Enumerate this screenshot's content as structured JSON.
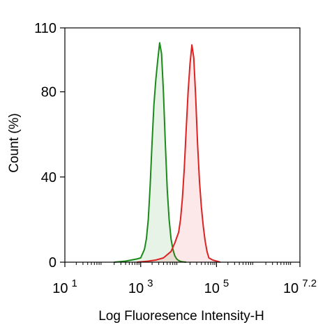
{
  "chart_data": {
    "type": "area",
    "title": "",
    "xlabel": "Log Fluoresence Intensity-H",
    "ylabel": "Count  (%)",
    "x_scale": "log10",
    "xlim": [
      1,
      7.2
    ],
    "ylim": [
      0,
      110
    ],
    "grid": false,
    "legend": "none",
    "x_ticks": [
      {
        "base": "10",
        "exp": "1",
        "value": 1
      },
      {
        "base": "10",
        "exp": "3",
        "value": 3
      },
      {
        "base": "10",
        "exp": "5",
        "value": 5
      },
      {
        "base": "10",
        "exp": "7.2",
        "value": 7.2
      }
    ],
    "y_ticks": [
      {
        "label": "0",
        "value": 0
      },
      {
        "label": "40",
        "value": 40
      },
      {
        "label": "80",
        "value": 80
      },
      {
        "label": "110",
        "value": 110
      }
    ],
    "series": [
      {
        "color": "#1a8a1a",
        "fill": "rgba(26,138,26,0.10)",
        "x": [
          2.3,
          2.6,
          2.9,
          3.0,
          3.05,
          3.1,
          3.15,
          3.2,
          3.25,
          3.3,
          3.35,
          3.4,
          3.45,
          3.5,
          3.55,
          3.6,
          3.65,
          3.7,
          3.75,
          3.8,
          3.85,
          3.9,
          3.95,
          4.0,
          4.05,
          4.1,
          4.2
        ],
        "y": [
          0,
          0.5,
          1.5,
          2,
          4,
          6,
          11,
          20,
          36,
          56,
          74,
          86,
          95,
          103,
          98,
          80,
          56,
          34,
          20,
          11,
          6,
          3,
          1.5,
          0.8,
          0.4,
          0.2,
          0
        ]
      },
      {
        "color": "#dd2222",
        "fill": "rgba(221,34,34,0.10)",
        "x": [
          2.9,
          3.2,
          3.4,
          3.6,
          3.8,
          3.9,
          4.0,
          4.05,
          4.1,
          4.15,
          4.2,
          4.25,
          4.3,
          4.35,
          4.4,
          4.45,
          4.5,
          4.55,
          4.6,
          4.65,
          4.7,
          4.75,
          4.8,
          4.9,
          5.0,
          5.1
        ],
        "y": [
          0,
          0.5,
          1,
          2,
          5,
          9,
          14,
          20,
          30,
          44,
          62,
          80,
          93,
          102,
          96,
          78,
          56,
          38,
          26,
          17,
          10,
          5,
          2,
          1,
          0.5,
          0
        ]
      }
    ]
  }
}
